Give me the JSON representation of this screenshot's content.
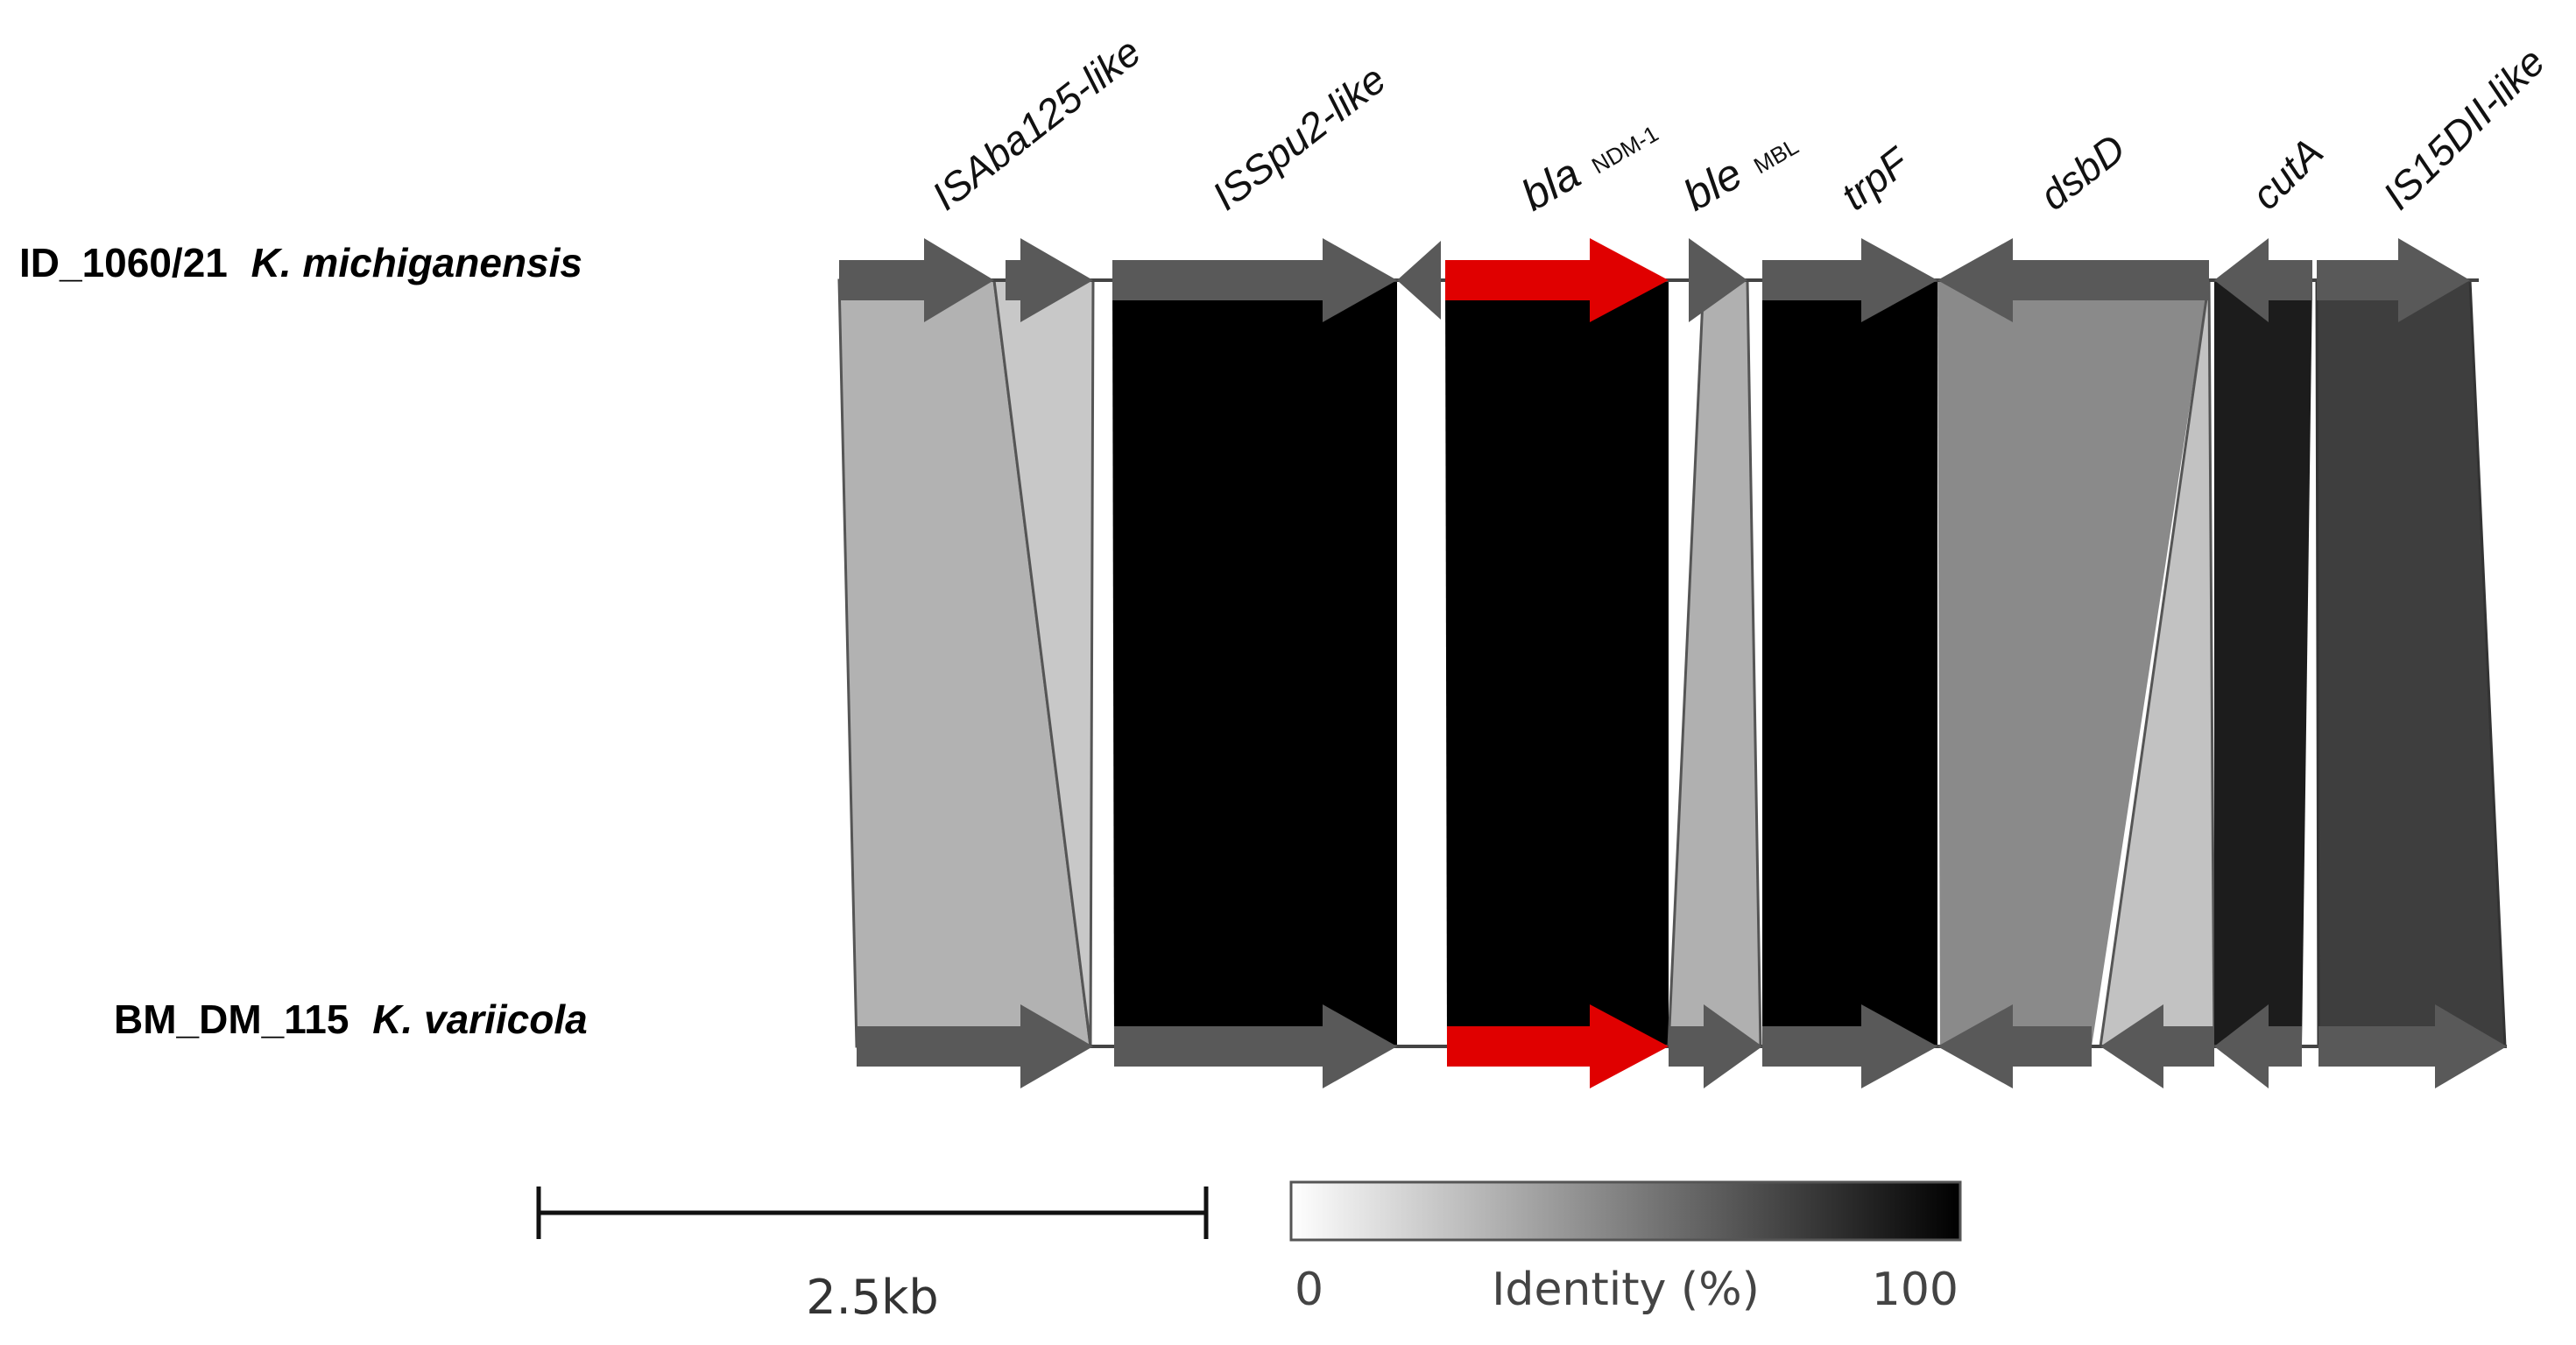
{
  "tracks": {
    "top": {
      "id": "ID_1060/21",
      "species": "K. michiganensis"
    },
    "bottom": {
      "id": "BM_DM_115",
      "species": "K. variicola"
    }
  },
  "gene_labels": [
    {
      "key": "isaba125",
      "text": "ISAba125-like",
      "sub": ""
    },
    {
      "key": "isspu2",
      "text": "ISSpu2-like",
      "sub": ""
    },
    {
      "key": "blandm",
      "text": "bla",
      "sub": "NDM-1"
    },
    {
      "key": "blembl",
      "text": "ble",
      "sub": "MBL"
    },
    {
      "key": "trpf",
      "text": "trpF",
      "sub": ""
    },
    {
      "key": "dsbd",
      "text": "dsbD",
      "sub": ""
    },
    {
      "key": "cuta",
      "text": "cutA",
      "sub": ""
    },
    {
      "key": "is15dii",
      "text": "IS15DII-like",
      "sub": ""
    }
  ],
  "scale_bar": {
    "label": "2.5kb"
  },
  "identity_legend": {
    "title": "Identity (%)",
    "min_label": "0",
    "max_label": "100",
    "gradient_start": "#ffffff",
    "gradient_end": "#000000"
  },
  "colors": {
    "gene_arrow": "#595959",
    "resistance_gene": "#e00000",
    "backbone_line": "#444444"
  }
}
